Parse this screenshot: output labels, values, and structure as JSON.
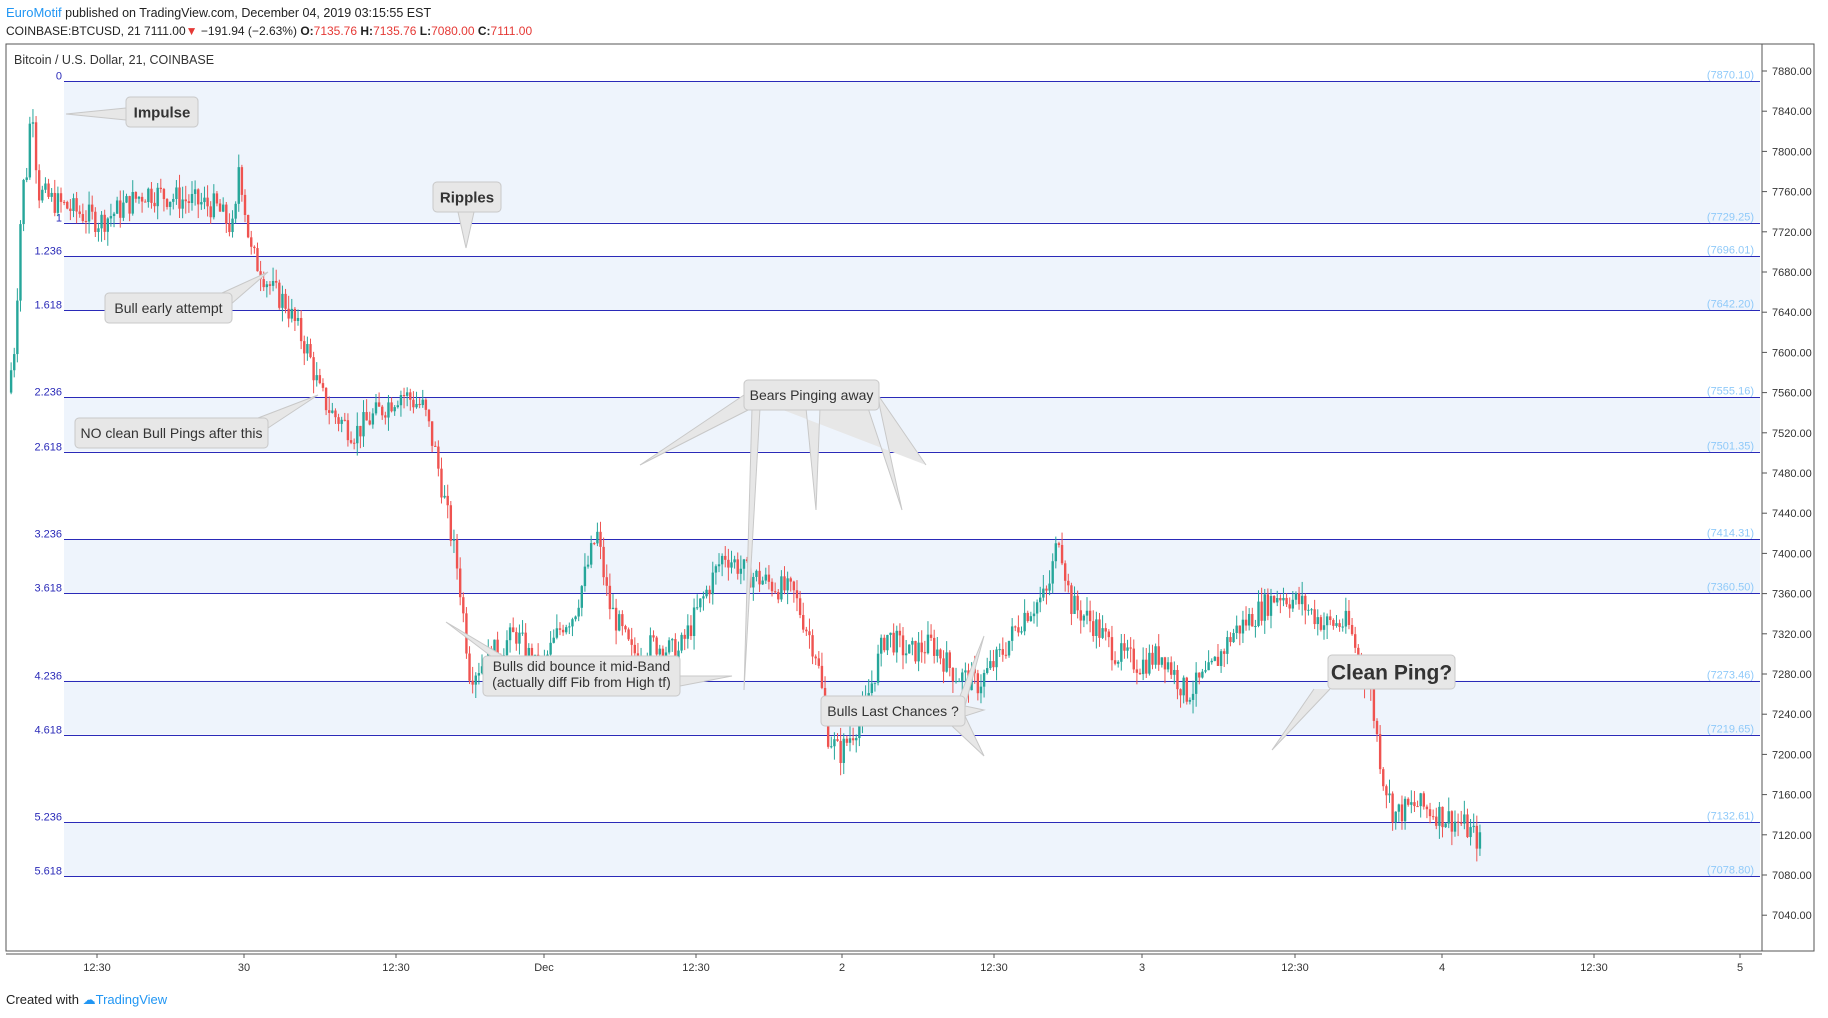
{
  "header": {
    "author": "EuroMotif",
    "published_text": " published on TradingView.com, December 04, 2019 03:15:55 EST",
    "symbol_line": "COINBASE:BTCUSD, 21",
    "last": "7111.00",
    "change": "−191.94 (−2.63%)",
    "o_label": "O:",
    "o_value": "7135.76",
    "h_label": "H:",
    "h_value": "7135.76",
    "l_label": "L:",
    "l_value": "7080.00",
    "c_label": "C:",
    "c_value": "7111.00"
  },
  "footer": {
    "created_with": "Created with",
    "brand": "TradingView"
  },
  "colors": {
    "up": "#26a69a",
    "down": "#ef5350",
    "fib_line": "#2a2ab8",
    "fib_label": "#90caf9",
    "band": "#eef4fc"
  },
  "chart_data": {
    "type": "candlestick",
    "title": "Bitcoin / U.S. Dollar, 21, COINBASE",
    "ylim": [
      7000,
      7900
    ],
    "y_ticks": [
      "7880.00",
      "7840.00",
      "7800.00",
      "7760.00",
      "7720.00",
      "7680.00",
      "7640.00",
      "7600.00",
      "7560.00",
      "7520.00",
      "7480.00",
      "7440.00",
      "7400.00",
      "7360.00",
      "7320.00",
      "7280.00",
      "7240.00",
      "7200.00",
      "7160.00",
      "7120.00",
      "7080.00",
      "7040.00"
    ],
    "x_ticks": [
      "12:30",
      "30",
      "12:30",
      "Dec",
      "12:30",
      "2",
      "12:30",
      "3",
      "12:30",
      "4",
      "12:30",
      "5"
    ],
    "fib_levels": [
      {
        "ratio": "0",
        "price": "(7870.10)",
        "value": 7870.1
      },
      {
        "ratio": "1",
        "price": "(7729.25)",
        "value": 7729.25
      },
      {
        "ratio": "1.236",
        "price": "(7696.01)",
        "value": 7696.01
      },
      {
        "ratio": "1.618",
        "price": "(7642.20)",
        "value": 7642.2
      },
      {
        "ratio": "2.236",
        "price": "(7555.16)",
        "value": 7555.16
      },
      {
        "ratio": "2.618",
        "price": "(7501.35)",
        "value": 7501.35
      },
      {
        "ratio": "3.236",
        "price": "(7414.31)",
        "value": 7414.31
      },
      {
        "ratio": "3.618",
        "price": "(7360.50)",
        "value": 7360.5
      },
      {
        "ratio": "4.236",
        "price": "(7273.46)",
        "value": 7273.46
      },
      {
        "ratio": "4.618",
        "price": "(7219.65)",
        "value": 7219.65
      },
      {
        "ratio": "5.236",
        "price": "(7132.61)",
        "value": 7132.61
      },
      {
        "ratio": "5.618",
        "price": "(7078.80)",
        "value": 7078.8
      }
    ],
    "price_path": [
      [
        0,
        7560
      ],
      [
        0.3,
        7610
      ],
      [
        0.6,
        7760
      ],
      [
        0.9,
        7790
      ],
      [
        1.0,
        7870
      ],
      [
        1.3,
        7760
      ],
      [
        2,
        7750
      ],
      [
        3,
        7740
      ],
      [
        4,
        7730
      ],
      [
        5,
        7745
      ],
      [
        6,
        7760
      ],
      [
        7,
        7755
      ],
      [
        8,
        7750
      ],
      [
        9,
        7745
      ],
      [
        9.8,
        7720
      ],
      [
        10.0,
        7790
      ],
      [
        10.5,
        7700
      ],
      [
        11,
        7680
      ],
      [
        11.5,
        7660
      ],
      [
        12,
        7650
      ],
      [
        13,
        7600
      ],
      [
        13.5,
        7560
      ],
      [
        14,
        7540
      ],
      [
        15,
        7520
      ],
      [
        16,
        7540
      ],
      [
        17,
        7560
      ],
      [
        18,
        7545
      ],
      [
        18.5,
        7500
      ],
      [
        19,
        7440
      ],
      [
        19.5,
        7380
      ],
      [
        20,
        7280
      ],
      [
        21,
        7300
      ],
      [
        22,
        7320
      ],
      [
        23,
        7280
      ],
      [
        24,
        7330
      ],
      [
        24.5,
        7340
      ],
      [
        25,
        7380
      ],
      [
        25.5,
        7420
      ],
      [
        26,
        7350
      ],
      [
        27,
        7300
      ],
      [
        28,
        7310
      ],
      [
        29,
        7300
      ],
      [
        30,
        7350
      ],
      [
        31,
        7400
      ],
      [
        32,
        7380
      ],
      [
        33,
        7370
      ],
      [
        34,
        7360
      ],
      [
        35,
        7300
      ],
      [
        35.5,
        7220
      ],
      [
        36,
        7200
      ],
      [
        37,
        7240
      ],
      [
        38,
        7320
      ],
      [
        39,
        7300
      ],
      [
        40,
        7310
      ],
      [
        41,
        7280
      ],
      [
        42,
        7270
      ],
      [
        43,
        7300
      ],
      [
        44,
        7340
      ],
      [
        45,
        7360
      ],
      [
        45.5,
        7420
      ],
      [
        46,
        7350
      ],
      [
        47,
        7330
      ],
      [
        48,
        7300
      ],
      [
        49,
        7290
      ],
      [
        50,
        7300
      ],
      [
        51,
        7260
      ],
      [
        52,
        7280
      ],
      [
        53,
        7320
      ],
      [
        54,
        7340
      ],
      [
        55,
        7360
      ],
      [
        56,
        7350
      ],
      [
        57,
        7330
      ],
      [
        58,
        7330
      ],
      [
        59,
        7260
      ],
      [
        59.5,
        7180
      ],
      [
        60,
        7140
      ],
      [
        61,
        7150
      ],
      [
        62,
        7140
      ],
      [
        63,
        7130
      ],
      [
        63.8,
        7111
      ]
    ],
    "x_domain": [
      0,
      76
    ]
  },
  "annotations": [
    {
      "label": "Impulse",
      "bold": true,
      "font": 15
    },
    {
      "label": "Ripples",
      "bold": true,
      "font": 15
    },
    {
      "label": "Bull early attempt",
      "bold": false,
      "font": 14
    },
    {
      "label": "NO clean Bull Pings after this",
      "bold": false,
      "font": 14
    },
    {
      "label": "Bears Pinging away",
      "bold": false,
      "font": 14
    },
    {
      "label": "Bulls did bounce it mid-Band",
      "label2": "(actually diff Fib from High tf)",
      "bold": false,
      "font": 14
    },
    {
      "label": "Bulls Last Chances ?",
      "bold": false,
      "font": 14
    },
    {
      "label": "Clean Ping?",
      "bold": true,
      "font": 21
    }
  ]
}
